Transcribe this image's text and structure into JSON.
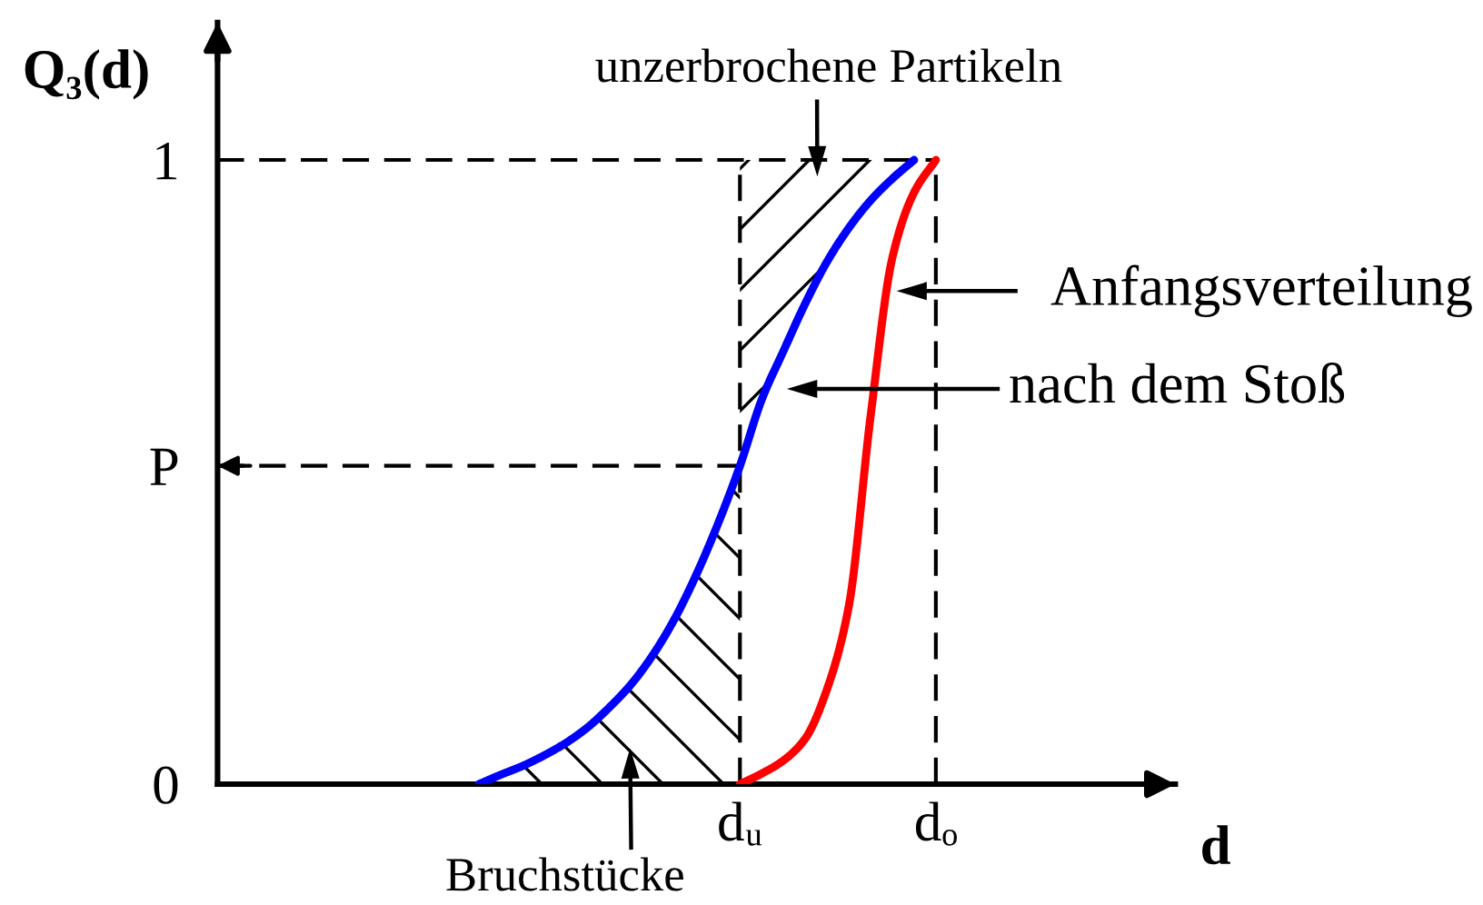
{
  "chart_data": {
    "type": "line",
    "xlabel": "d",
    "ylabel": "Q₃(d)",
    "categories": [
      null,
      null,
      null,
      null,
      null,
      null,
      null,
      null,
      null,
      null,
      null,
      null,
      null,
      null,
      null,
      null,
      null,
      null,
      null,
      null,
      null,
      null,
      null,
      null,
      "dᵤ",
      null,
      null,
      null,
      null,
      null,
      null,
      null,
      null,
      "dₒ",
      null,
      null,
      null,
      null,
      null,
      null,
      null,
      null,
      null,
      null,
      null
    ],
    "ylim": [
      0,
      1.22
    ],
    "yticks": [
      0,
      {
        "value": 0.51,
        "label": "P"
      },
      1
    ],
    "series": [
      {
        "color": "#0000ff",
        "values": [
          null,
          null,
          null,
          null,
          null,
          null,
          null,
          null,
          null,
          null,
          null,
          null,
          0,
          0.015,
          0.029,
          0.046,
          0.066,
          0.091,
          0.123,
          0.16,
          0.207,
          0.265,
          0.336,
          0.418,
          0.51,
          0.616,
          0.694,
          0.77,
          0.837,
          0.891,
          0.935,
          0.97,
          1,
          null,
          null,
          null,
          null,
          null,
          null,
          null,
          null,
          null,
          null,
          null,
          null
        ],
        "lower": [
          null,
          null,
          null,
          null,
          null,
          null,
          null,
          null,
          null,
          null,
          null,
          null,
          null,
          null,
          null,
          null,
          null,
          null,
          null,
          null,
          null,
          null,
          null,
          null,
          0.51,
          0.616,
          0.694,
          0.77,
          0.837,
          0.891,
          0.935,
          0.97,
          1,
          null,
          null,
          null,
          null,
          null,
          null,
          null,
          null,
          null,
          null,
          null,
          null
        ],
        "upper": [
          null,
          null,
          null,
          null,
          null,
          null,
          null,
          null,
          null,
          null,
          null,
          null,
          null,
          null,
          null,
          null,
          null,
          null,
          null,
          null,
          null,
          null,
          null,
          null,
          1,
          1,
          1,
          1,
          1,
          1,
          1,
          1,
          1,
          null,
          null,
          null,
          null,
          null,
          null,
          null,
          null,
          null,
          null,
          null,
          null
        ]
      },
      {
        "color": "#ff0000",
        "values": [
          null,
          null,
          null,
          null,
          null,
          null,
          null,
          null,
          null,
          null,
          null,
          null,
          null,
          null,
          null,
          null,
          null,
          null,
          null,
          null,
          null,
          null,
          null,
          null,
          0,
          0.017,
          0.038,
          0.073,
          0.152,
          0.285,
          0.589,
          0.843,
          0.948,
          1,
          null,
          null,
          null,
          null,
          null,
          null,
          null,
          null,
          null,
          null,
          null
        ]
      },
      {
        "type": "area",
        "name": "Bruchstücke",
        "color": "#000000",
        "values": [
          null,
          null,
          null,
          null,
          null,
          null,
          null,
          null,
          null,
          null,
          null,
          null,
          0,
          0.015,
          0.029,
          0.046,
          0.066,
          0.091,
          0.123,
          0.16,
          0.207,
          0.265,
          0.336,
          0.418,
          0.51,
          null,
          null,
          null,
          null,
          null,
          null,
          null,
          null,
          null,
          null,
          null,
          null,
          null,
          null,
          null,
          null,
          null,
          null,
          null,
          null
        ]
      }
    ],
    "ref_lines": [
      {
        "axis": "x",
        "value": "dᵤ",
        "color": "#000000",
        "line_style": "dashed"
      },
      {
        "axis": "x",
        "value": "dₒ",
        "color": "#000000",
        "line_style": "dashed"
      },
      {
        "axis": "y",
        "value": 1,
        "color": "#000000",
        "line_style": "dashed"
      },
      {
        "axis": "y",
        "value": 0.51,
        "color": "#000000",
        "line_style": "dashed"
      }
    ],
    "annotations": [
      "unzerbrochene Partikeln",
      "Anfangsverteilung",
      "nach dem Stoß"
    ]
  }
}
